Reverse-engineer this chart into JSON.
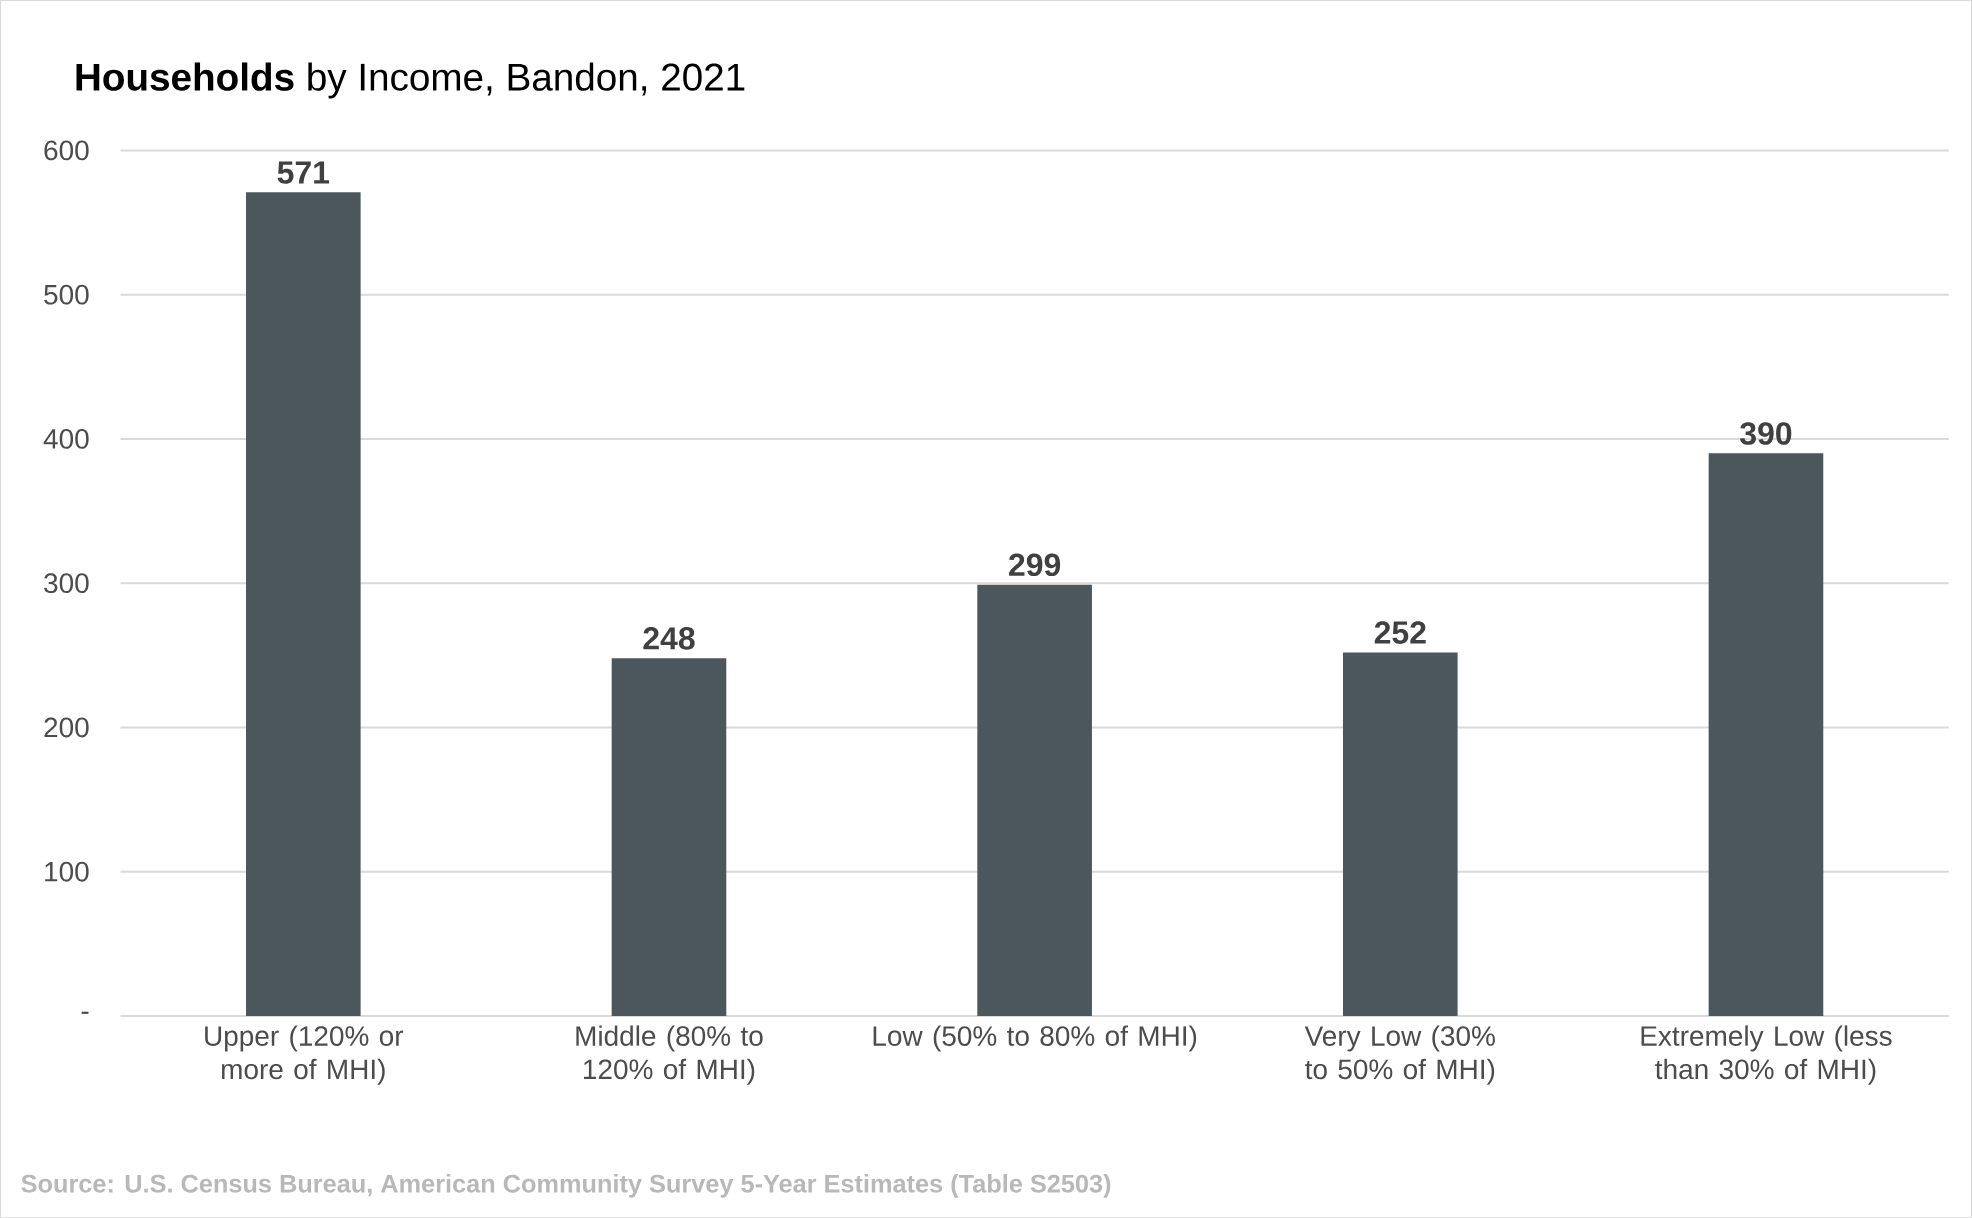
{
  "chart_data": {
    "type": "bar",
    "title": "**Households** by Income, Bandon, 2021",
    "categories": [
      "Upper (120% or more of MHI)",
      "Middle (80%  to 120% of MHI)",
      "Low (50%  to 80% of MHI)",
      "Very Low (30% to 50% of MHI)",
      "Extremely Low (less than 30% of MHI)"
    ],
    "values": [
      571,
      248,
      299,
      252,
      390
    ],
    "color": "#4b565d",
    "ylim": [
      0,
      600
    ],
    "yticks": [
      {
        "value": 0,
        "label": "-"
      },
      100,
      200,
      300,
      400,
      500,
      600
    ],
    "grid": "y",
    "data_labels": true,
    "annotations": [
      "Source: U.S. Census Bureau, American Community Survey 5-Year Estimates (Table S2503)"
    ]
  }
}
